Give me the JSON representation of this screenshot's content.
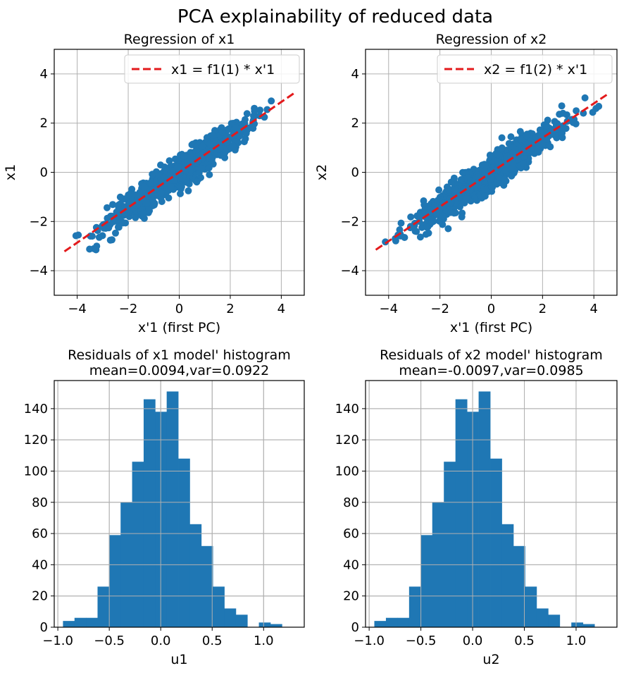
{
  "title": "PCA explainability of reduced data",
  "chart_data": [
    {
      "type": "scatter",
      "title": "Regression of x1",
      "xlabel": "x'1 (first PC)",
      "ylabel": "x1",
      "xlim": [
        -4.9,
        4.9
      ],
      "ylim": [
        -5,
        5
      ],
      "xticks": [
        -4,
        -2,
        0,
        2,
        4
      ],
      "yticks": [
        -4,
        -2,
        0,
        2,
        4
      ],
      "grid": true,
      "marker_color": "#1f77b4",
      "legend": {
        "placement": "top-right",
        "entries": [
          "x1 = f1(1) * x'1"
        ]
      },
      "fit_line": {
        "slope": 0.715,
        "x_range": [
          -4.5,
          4.5
        ],
        "color": "#e31a1c",
        "style": "dashed"
      },
      "trend": {
        "slope": 0.715,
        "noise_sd": 0.3,
        "x_range": [
          -4.1,
          4.3
        ],
        "count": 1000
      }
    },
    {
      "type": "scatter",
      "title": "Regression of x2",
      "xlabel": "x'1 (first PC)",
      "ylabel": "x2",
      "xlim": [
        -4.9,
        4.9
      ],
      "ylim": [
        -5,
        5
      ],
      "xticks": [
        -4,
        -2,
        0,
        2,
        4
      ],
      "yticks": [
        -4,
        -2,
        0,
        2,
        4
      ],
      "grid": true,
      "marker_color": "#1f77b4",
      "legend": {
        "placement": "top-right",
        "entries": [
          "x2 = f1(2) * x'1"
        ]
      },
      "fit_line": {
        "slope": 0.7,
        "x_range": [
          -4.5,
          4.5
        ],
        "color": "#e31a1c",
        "style": "dashed"
      },
      "trend": {
        "slope": 0.7,
        "noise_sd": 0.31,
        "x_range": [
          -4.3,
          4.2
        ],
        "count": 1000
      }
    },
    {
      "type": "bar",
      "subtype": "histogram",
      "title": "Residuals of x1 model' histogram",
      "subtitle": "mean=0.0094,var=0.0922",
      "xlabel": "u1",
      "ylabel": "",
      "xlim": [
        -1.035,
        1.395
      ],
      "ylim": [
        0,
        158
      ],
      "xticks": [
        -1.0,
        -0.5,
        0.0,
        0.5,
        1.0
      ],
      "xtick_labels": [
        "−1.0",
        "−0.5",
        "0.0",
        "0.5",
        "1.0"
      ],
      "yticks": [
        0,
        20,
        40,
        60,
        80,
        100,
        120,
        140
      ],
      "grid": true,
      "bar_color": "#1f77b4",
      "bin_start": -0.95,
      "bin_width": 0.112,
      "counts": [
        4,
        6,
        6,
        26,
        59,
        80,
        106,
        146,
        138,
        151,
        108,
        66,
        52,
        26,
        12,
        8,
        0,
        3,
        2
      ]
    },
    {
      "type": "bar",
      "subtype": "histogram",
      "title": "Residuals of x2 model' histogram",
      "subtitle": "mean=-0.0097,var=0.0985",
      "xlabel": "u2",
      "ylabel": "",
      "xlim": [
        -1.035,
        1.395
      ],
      "ylim": [
        0,
        158
      ],
      "xticks": [
        -1.0,
        -0.5,
        0.0,
        0.5,
        1.0
      ],
      "xtick_labels": [
        "−1.0",
        "−0.5",
        "0.0",
        "0.5",
        "1.0"
      ],
      "yticks": [
        0,
        20,
        40,
        60,
        80,
        100,
        120,
        140
      ],
      "grid": true,
      "bar_color": "#1f77b4",
      "bin_start": -0.95,
      "bin_width": 0.112,
      "counts": [
        4,
        6,
        6,
        26,
        59,
        80,
        106,
        146,
        138,
        151,
        108,
        66,
        52,
        26,
        12,
        8,
        0,
        3,
        2
      ]
    }
  ]
}
